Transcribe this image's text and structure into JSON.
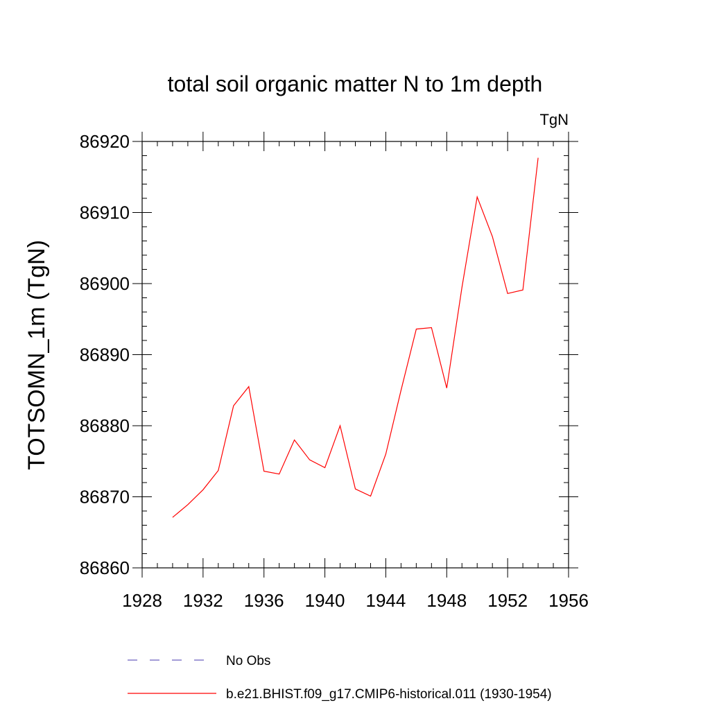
{
  "chart_data": {
    "type": "line",
    "title": "total soil organic matter N to 1m depth",
    "units_label": "TgN",
    "ylabel": "TOTSOMN_1m  (TgN)",
    "xlabel": "",
    "xlim": [
      1928,
      1956
    ],
    "ylim": [
      86860,
      86920
    ],
    "x_ticks": [
      1928,
      1932,
      1936,
      1940,
      1944,
      1948,
      1952,
      1956
    ],
    "y_ticks": [
      86860,
      86870,
      86880,
      86890,
      86900,
      86910,
      86920
    ],
    "x_minor_step": 1,
    "y_minor_step": 2,
    "grid": false,
    "legend_position": "bottom",
    "series": [
      {
        "name": "No Obs",
        "color": "#6b5fbf",
        "dash": true,
        "x": [],
        "values": []
      },
      {
        "name": "b.e21.BHIST.f09_g17.CMIP6-historical.011 (1930-1954)",
        "color": "#ff0000",
        "dash": false,
        "x": [
          1930,
          1931,
          1932,
          1933,
          1934,
          1935,
          1936,
          1937,
          1938,
          1939,
          1940,
          1941,
          1942,
          1943,
          1944,
          1945,
          1946,
          1947,
          1948,
          1949,
          1950,
          1951,
          1952,
          1953,
          1954
        ],
        "values": [
          86867.1,
          86868.9,
          86871.0,
          86873.7,
          86882.8,
          86885.5,
          86873.6,
          86873.2,
          86878.0,
          86875.2,
          86874.1,
          86880.0,
          86871.1,
          86870.1,
          86876.0,
          86885.0,
          86893.6,
          86893.8,
          86885.3,
          86899.5,
          86912.2,
          86906.6,
          86898.6,
          86899.1,
          86917.7
        ]
      }
    ]
  }
}
